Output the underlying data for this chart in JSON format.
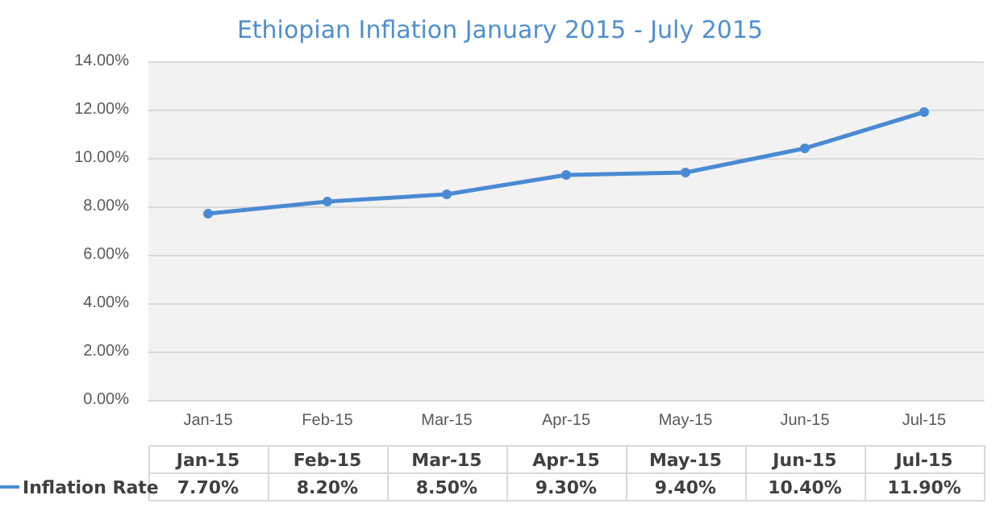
{
  "chart_data": {
    "type": "line",
    "title": "Ethiopian Inflation January 2015 - July 2015",
    "categories": [
      "Jan-15",
      "Feb-15",
      "Mar-15",
      "Apr-15",
      "May-15",
      "Jun-15",
      "Jul-15"
    ],
    "series": [
      {
        "name": "Inflation Rate",
        "color": "#4a8ad4",
        "values": [
          7.7,
          8.2,
          8.5,
          9.3,
          9.4,
          10.4,
          11.9
        ],
        "value_labels": [
          "7.70%",
          "8.20%",
          "8.50%",
          "9.30%",
          "9.40%",
          "10.40%",
          "11.90%"
        ]
      }
    ],
    "ylim": [
      0,
      14
    ],
    "yticks": [
      {
        "value": 0,
        "label": "0.00%"
      },
      {
        "value": 2,
        "label": "2.00%"
      },
      {
        "value": 4,
        "label": "4.00%"
      },
      {
        "value": 6,
        "label": "6.00%"
      },
      {
        "value": 8,
        "label": "8.00%"
      },
      {
        "value": 10,
        "label": "10.00%"
      },
      {
        "value": 12,
        "label": "12.00%"
      },
      {
        "value": 14,
        "label": "14.00%"
      }
    ],
    "grid": "y",
    "legend": "bottom",
    "marker": "circle",
    "line_style": "solid"
  }
}
